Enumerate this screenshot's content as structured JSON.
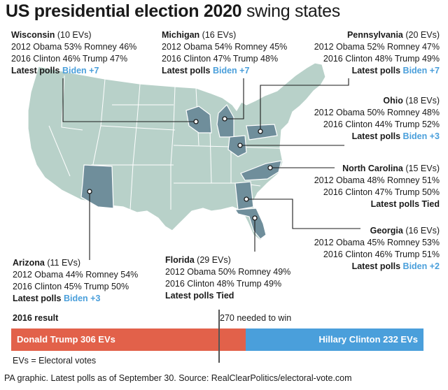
{
  "title": {
    "bold": "US presidential election 2020",
    "rest": "swing states"
  },
  "colors": {
    "map_fill": "#b8d1c9",
    "map_stroke": "#ffffff",
    "state_highlight": "#6f8e9b",
    "trump": "#e2614a",
    "clinton": "#4a9fdb",
    "biden_text": "#4a9fdb"
  },
  "states": [
    {
      "id": "wisconsin",
      "name": "Wisconsin",
      "evs": "(10 EVs)",
      "line2012": "2012 Obama 53% Romney 46%",
      "line2016": "2016 Clinton 46% Trump 47%",
      "polls_label": "Latest polls",
      "polls_value": "Biden +7"
    },
    {
      "id": "michigan",
      "name": "Michigan",
      "evs": "(16 EVs)",
      "line2012": "2012 Obama 54% Romney 45%",
      "line2016": "2016 Clinton 47% Trump 48%",
      "polls_label": "Latest polls",
      "polls_value": "Biden +7"
    },
    {
      "id": "pennsylvania",
      "name": "Pennsylvania",
      "evs": "(20 EVs)",
      "line2012": "2012 Obama 52% Romney 47%",
      "line2016": "2016 Clinton 48% Trump 49%",
      "polls_label": "Latest polls",
      "polls_value": "Biden +7"
    },
    {
      "id": "ohio",
      "name": "Ohio",
      "evs": "(18 EVs)",
      "line2012": "2012 Obama 50% Romney 48%",
      "line2016": "2016 Clinton 44% Trump 52%",
      "polls_label": "Latest polls",
      "polls_value": "Biden +3"
    },
    {
      "id": "north-carolina",
      "name": "North Carolina",
      "evs": "(15 EVs)",
      "line2012": "2012 Obama 48% Romney 51%",
      "line2016": "2016 Clinton 47% Trump 50%",
      "polls_label": "Latest polls",
      "polls_value": "Tied"
    },
    {
      "id": "georgia",
      "name": "Georgia",
      "evs": "(16 EVs)",
      "line2012": "2012 Obama 45% Romney 53%",
      "line2016": "2016 Clinton 46% Trump 51%",
      "polls_label": "Latest polls",
      "polls_value": "Biden +2"
    },
    {
      "id": "florida",
      "name": "Florida",
      "evs": "(29 EVs)",
      "line2012": "2012 Obama 50% Romney 49%",
      "line2016": "2016 Clinton 48% Trump 49%",
      "polls_label": "Latest polls",
      "polls_value": "Tied"
    },
    {
      "id": "arizona",
      "name": "Arizona",
      "evs": "(11 EVs)",
      "line2012": "2012 Obama 44% Romney 54%",
      "line2016": "2016 Clinton 45% Trump 50%",
      "polls_label": "Latest polls",
      "polls_value": "Biden +3"
    }
  ],
  "result": {
    "label": "2016 result",
    "needed": "270 needed to win",
    "trump_label": "Donald Trump 306 EVs",
    "clinton_label": "Hillary Clinton 232 EVs"
  },
  "notes": {
    "ev": "EVs = Electoral votes",
    "source": "PA graphic. Latest polls as of September 30. Source: RealClearPolitics/electoral-vote.com"
  },
  "chart_data": {
    "type": "bar",
    "title": "2016 result",
    "categories": [
      "Donald Trump",
      "Hillary Clinton"
    ],
    "values": [
      306,
      232
    ],
    "threshold": 270,
    "threshold_label": "270 needed to win",
    "units": "EVs",
    "stacked": true
  }
}
